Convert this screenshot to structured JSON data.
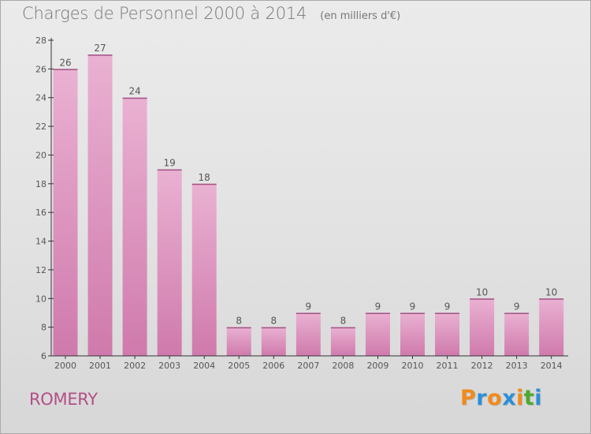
{
  "title": "Charges de Personnel 2000 à 2014",
  "subtitle": "(en milliers d'€)",
  "commune": "ROMERY",
  "logo": {
    "letters": [
      "P",
      "r",
      "o",
      "x",
      "i",
      "t",
      "i"
    ],
    "colors": [
      "#f08a1c",
      "#2a8fd9",
      "#f08a1c",
      "#2a8fd9",
      "#f08a1c",
      "#4caa2c",
      "#2a8fd9"
    ]
  },
  "colors": {
    "bar": "#cf7aac",
    "bar_light": "#eab1d2",
    "axis": "#333333",
    "text": "#555555"
  },
  "chart_data": {
    "type": "bar",
    "title": "Charges de Personnel 2000 à 2014",
    "subtitle": "(en milliers d'€)",
    "categories": [
      "2000",
      "2001",
      "2002",
      "2003",
      "2004",
      "2005",
      "2006",
      "2007",
      "2008",
      "2009",
      "2010",
      "2011",
      "2012",
      "2013",
      "2014"
    ],
    "values": [
      26,
      27,
      24,
      19,
      18,
      8,
      8,
      9,
      8,
      9,
      9,
      9,
      10,
      9,
      10
    ],
    "ylim": [
      6,
      28
    ],
    "yticks": [
      6,
      8,
      10,
      12,
      14,
      16,
      18,
      20,
      22,
      24,
      26,
      28
    ],
    "grid": false,
    "data_labels": true
  }
}
